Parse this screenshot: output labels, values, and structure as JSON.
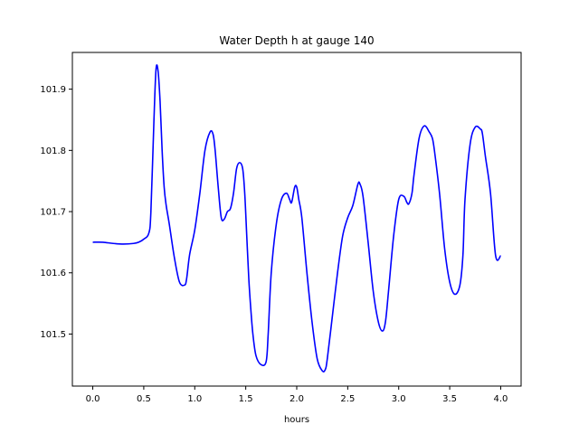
{
  "chart_data": {
    "type": "line",
    "title": "Water Depth h at gauge 140",
    "xlabel": "hours",
    "ylabel": "",
    "xlim": [
      -0.2,
      4.2
    ],
    "ylim": [
      101.415,
      101.96
    ],
    "xticks": [
      0.0,
      0.5,
      1.0,
      1.5,
      2.0,
      2.5,
      3.0,
      3.5,
      4.0
    ],
    "xtick_labels": [
      "0.0",
      "0.5",
      "1.0",
      "1.5",
      "2.0",
      "2.5",
      "3.0",
      "3.5",
      "4.0"
    ],
    "yticks": [
      101.5,
      101.6,
      101.7,
      101.8,
      101.9
    ],
    "ytick_labels": [
      "101.5",
      "101.6",
      "101.7",
      "101.8",
      "101.9"
    ],
    "grid": false,
    "series": [
      {
        "color": "#0000ff",
        "x": [
          0.0,
          0.1,
          0.2,
          0.3,
          0.4,
          0.45,
          0.5,
          0.55,
          0.57,
          0.6,
          0.62,
          0.64,
          0.66,
          0.68,
          0.7,
          0.72,
          0.75,
          0.8,
          0.85,
          0.9,
          0.92,
          0.95,
          1.0,
          1.05,
          1.1,
          1.15,
          1.18,
          1.2,
          1.23,
          1.26,
          1.29,
          1.32,
          1.35,
          1.38,
          1.41,
          1.44,
          1.47,
          1.49,
          1.51,
          1.53,
          1.55,
          1.57,
          1.6,
          1.65,
          1.7,
          1.72,
          1.75,
          1.8,
          1.85,
          1.9,
          1.93,
          1.95,
          1.98,
          2.0,
          2.02,
          2.05,
          2.1,
          2.15,
          2.2,
          2.25,
          2.28,
          2.3,
          2.35,
          2.4,
          2.45,
          2.5,
          2.55,
          2.6,
          2.62,
          2.65,
          2.7,
          2.75,
          2.8,
          2.84,
          2.87,
          2.9,
          2.95,
          3.0,
          3.05,
          3.08,
          3.1,
          3.13,
          3.15,
          3.2,
          3.25,
          3.3,
          3.33,
          3.35,
          3.4,
          3.45,
          3.5,
          3.55,
          3.6,
          3.63,
          3.65,
          3.7,
          3.75,
          3.8,
          3.82,
          3.85,
          3.9,
          3.95,
          4.0
        ],
        "y": [
          101.65,
          101.65,
          101.648,
          101.647,
          101.648,
          101.65,
          101.655,
          101.665,
          101.7,
          101.85,
          101.932,
          101.93,
          101.88,
          101.8,
          101.74,
          101.71,
          101.68,
          101.625,
          101.585,
          101.58,
          101.59,
          101.63,
          101.67,
          101.73,
          101.8,
          101.83,
          101.826,
          101.8,
          101.74,
          101.69,
          101.688,
          101.7,
          101.705,
          101.73,
          101.77,
          101.78,
          101.77,
          101.73,
          101.66,
          101.59,
          101.54,
          101.5,
          101.465,
          101.45,
          101.455,
          101.5,
          101.6,
          101.68,
          101.72,
          101.73,
          101.72,
          101.715,
          101.74,
          101.74,
          101.72,
          101.69,
          101.6,
          101.52,
          101.46,
          101.44,
          101.442,
          101.46,
          101.53,
          101.6,
          101.66,
          101.69,
          101.71,
          101.745,
          101.745,
          101.725,
          101.65,
          101.57,
          101.52,
          101.505,
          101.52,
          101.57,
          101.66,
          101.72,
          101.725,
          101.715,
          101.713,
          101.73,
          101.76,
          101.82,
          101.84,
          101.83,
          101.82,
          101.8,
          101.73,
          101.64,
          101.585,
          101.565,
          101.58,
          101.63,
          101.72,
          101.81,
          101.838,
          101.835,
          101.828,
          101.79,
          101.73,
          101.628,
          101.628
        ]
      }
    ]
  }
}
